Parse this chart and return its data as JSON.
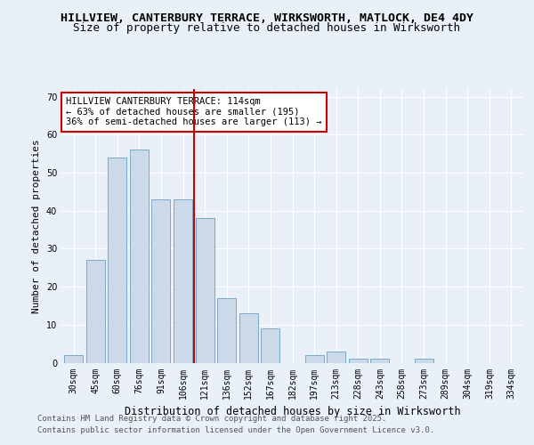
{
  "title_line1": "HILLVIEW, CANTERBURY TERRACE, WIRKSWORTH, MATLOCK, DE4 4DY",
  "title_line2": "Size of property relative to detached houses in Wirksworth",
  "xlabel": "Distribution of detached houses by size in Wirksworth",
  "ylabel": "Number of detached properties",
  "categories": [
    "30sqm",
    "45sqm",
    "60sqm",
    "76sqm",
    "91sqm",
    "106sqm",
    "121sqm",
    "136sqm",
    "152sqm",
    "167sqm",
    "182sqm",
    "197sqm",
    "213sqm",
    "228sqm",
    "243sqm",
    "258sqm",
    "273sqm",
    "289sqm",
    "304sqm",
    "319sqm",
    "334sqm"
  ],
  "values": [
    2,
    27,
    54,
    56,
    43,
    43,
    38,
    17,
    13,
    9,
    0,
    2,
    3,
    1,
    1,
    0,
    1,
    0,
    0,
    0,
    0
  ],
  "bar_color": "#ccd9e8",
  "bar_edge_color": "#7aaac8",
  "vline_color": "#cc0000",
  "annotation_text": "HILLVIEW CANTERBURY TERRACE: 114sqm\n← 63% of detached houses are smaller (195)\n36% of semi-detached houses are larger (113) →",
  "annotation_box_color": "#cc0000",
  "ylim": [
    0,
    72
  ],
  "yticks": [
    0,
    10,
    20,
    30,
    40,
    50,
    60,
    70
  ],
  "footer_line1": "Contains HM Land Registry data © Crown copyright and database right 2025.",
  "footer_line2": "Contains public sector information licensed under the Open Government Licence v3.0.",
  "bg_color": "#eaf0f8",
  "grid_color": "#ffffff",
  "title_fontsize": 9.5,
  "subtitle_fontsize": 9,
  "ylabel_fontsize": 8,
  "xlabel_fontsize": 8.5,
  "tick_fontsize": 7,
  "ann_fontsize": 7.5,
  "footer_fontsize": 6.5
}
